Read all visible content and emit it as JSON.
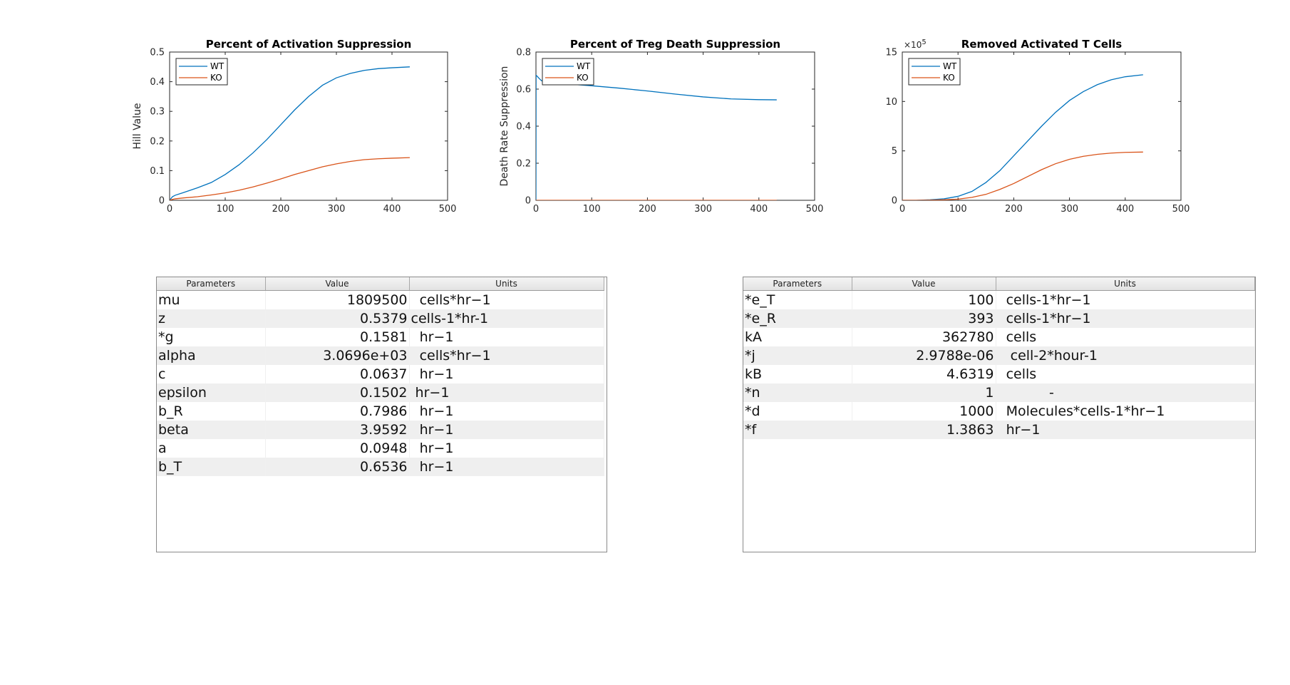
{
  "chart_data": [
    {
      "type": "line",
      "title": "Percent of Activation Suppression",
      "xlabel": "",
      "ylabel": "Hill Value",
      "xlim": [
        0,
        500
      ],
      "ylim": [
        0,
        0.5
      ],
      "xticks": [
        0,
        100,
        200,
        300,
        400,
        500
      ],
      "yticks": [
        0,
        0.1,
        0.2,
        0.3,
        0.4,
        0.5
      ],
      "yticklabels": [
        "0",
        "0.1",
        "0.2",
        "0.3",
        "0.4",
        "0.5"
      ],
      "legend_position": "top-left",
      "series": [
        {
          "name": "WT",
          "color": "#0072BD",
          "x": [
            0,
            5,
            10,
            25,
            50,
            75,
            100,
            125,
            150,
            175,
            200,
            225,
            250,
            275,
            300,
            325,
            350,
            375,
            400,
            432
          ],
          "y": [
            0.0,
            0.012,
            0.017,
            0.026,
            0.042,
            0.06,
            0.087,
            0.12,
            0.16,
            0.205,
            0.255,
            0.305,
            0.35,
            0.388,
            0.413,
            0.428,
            0.438,
            0.444,
            0.447,
            0.45
          ]
        },
        {
          "name": "KO",
          "color": "#D95319",
          "x": [
            0,
            5,
            10,
            25,
            50,
            75,
            100,
            125,
            150,
            175,
            200,
            225,
            250,
            275,
            300,
            325,
            350,
            375,
            400,
            432
          ],
          "y": [
            0.0,
            0.003,
            0.005,
            0.008,
            0.012,
            0.018,
            0.025,
            0.034,
            0.045,
            0.058,
            0.072,
            0.087,
            0.1,
            0.113,
            0.123,
            0.131,
            0.137,
            0.14,
            0.142,
            0.144
          ]
        }
      ]
    },
    {
      "type": "line",
      "title": "Percent of Treg Death Suppression",
      "xlabel": "",
      "ylabel": "Death Rate Suppression",
      "xlim": [
        0,
        500
      ],
      "ylim": [
        0,
        0.8
      ],
      "xticks": [
        0,
        100,
        200,
        300,
        400,
        500
      ],
      "yticks": [
        0,
        0.2,
        0.4,
        0.6,
        0.8
      ],
      "yticklabels": [
        "0",
        "0.2",
        "0.4",
        "0.6",
        "0.8"
      ],
      "legend_position": "top-left",
      "series": [
        {
          "name": "WT",
          "color": "#0072BD",
          "x": [
            0,
            0.2,
            2,
            5,
            10,
            30,
            60,
            100,
            150,
            200,
            250,
            300,
            350,
            400,
            432
          ],
          "y": [
            0.0,
            0.675,
            0.67,
            0.66,
            0.645,
            0.635,
            0.627,
            0.618,
            0.605,
            0.59,
            0.573,
            0.558,
            0.547,
            0.543,
            0.542
          ]
        },
        {
          "name": "KO",
          "color": "#D95319",
          "x": [
            0,
            432
          ],
          "y": [
            0.0,
            0.0
          ]
        }
      ]
    },
    {
      "type": "line",
      "title": "Removed Activated T Cells",
      "xlabel": "",
      "ylabel": "",
      "xlim": [
        0,
        500
      ],
      "ylim": [
        0,
        15
      ],
      "xticks": [
        0,
        100,
        200,
        300,
        400,
        500
      ],
      "yticks": [
        0,
        5,
        10,
        15
      ],
      "yticklabels": [
        "0",
        "5",
        "10",
        "15"
      ],
      "exponent_base": "×10",
      "exponent_power": "5",
      "legend_position": "top-left",
      "series": [
        {
          "name": "WT",
          "color": "#0072BD",
          "x": [
            0,
            25,
            50,
            75,
            100,
            125,
            150,
            175,
            200,
            225,
            250,
            275,
            300,
            325,
            350,
            375,
            400,
            432
          ],
          "y": [
            0,
            0.0,
            0.05,
            0.15,
            0.4,
            0.9,
            1.8,
            3.0,
            4.5,
            6.0,
            7.5,
            8.9,
            10.1,
            11.0,
            11.7,
            12.2,
            12.5,
            12.7
          ]
        },
        {
          "name": "KO",
          "color": "#D95319",
          "x": [
            0,
            25,
            50,
            75,
            100,
            125,
            150,
            175,
            200,
            225,
            250,
            275,
            300,
            325,
            350,
            375,
            400,
            432
          ],
          "y": [
            0,
            0.0,
            0.02,
            0.05,
            0.12,
            0.3,
            0.6,
            1.1,
            1.7,
            2.4,
            3.1,
            3.7,
            4.15,
            4.45,
            4.65,
            4.78,
            4.85,
            4.88
          ]
        }
      ]
    }
  ],
  "tables": [
    {
      "headers": [
        "Parameters",
        "Value",
        "Units"
      ],
      "rows": [
        [
          "mu",
          "1809500",
          "  cells*hr−1"
        ],
        [
          "z",
          "0.5379",
          "cells-1*hr-1"
        ],
        [
          "*g",
          "0.1581",
          "  hr−1"
        ],
        [
          "alpha",
          "3.0696e+03",
          "  cells*hr−1"
        ],
        [
          "c",
          "0.0637",
          "  hr−1"
        ],
        [
          "epsilon",
          "0.1502",
          " hr−1"
        ],
        [
          "b_R",
          "0.7986",
          "  hr−1"
        ],
        [
          "beta",
          "3.9592",
          "  hr−1"
        ],
        [
          "a",
          "0.0948",
          "  hr−1"
        ],
        [
          "b_T",
          "0.6536",
          "  hr−1"
        ]
      ]
    },
    {
      "headers": [
        "Parameters",
        "Value",
        "Units"
      ],
      "rows": [
        [
          "*e_T",
          "100",
          "  cells-1*hr−1"
        ],
        [
          "*e_R",
          "393",
          "  cells-1*hr−1"
        ],
        [
          "kA",
          "362780",
          "  cells"
        ],
        [
          "*j",
          "2.9788e-06",
          "   cell-2*hour-1"
        ],
        [
          "kB",
          "4.6319",
          "  cells"
        ],
        [
          "*n",
          "1",
          "            -"
        ],
        [
          "*d",
          "1000",
          "  Molecules*cells-1*hr−1"
        ],
        [
          "*f",
          "1.3863",
          "  hr−1"
        ]
      ]
    }
  ]
}
